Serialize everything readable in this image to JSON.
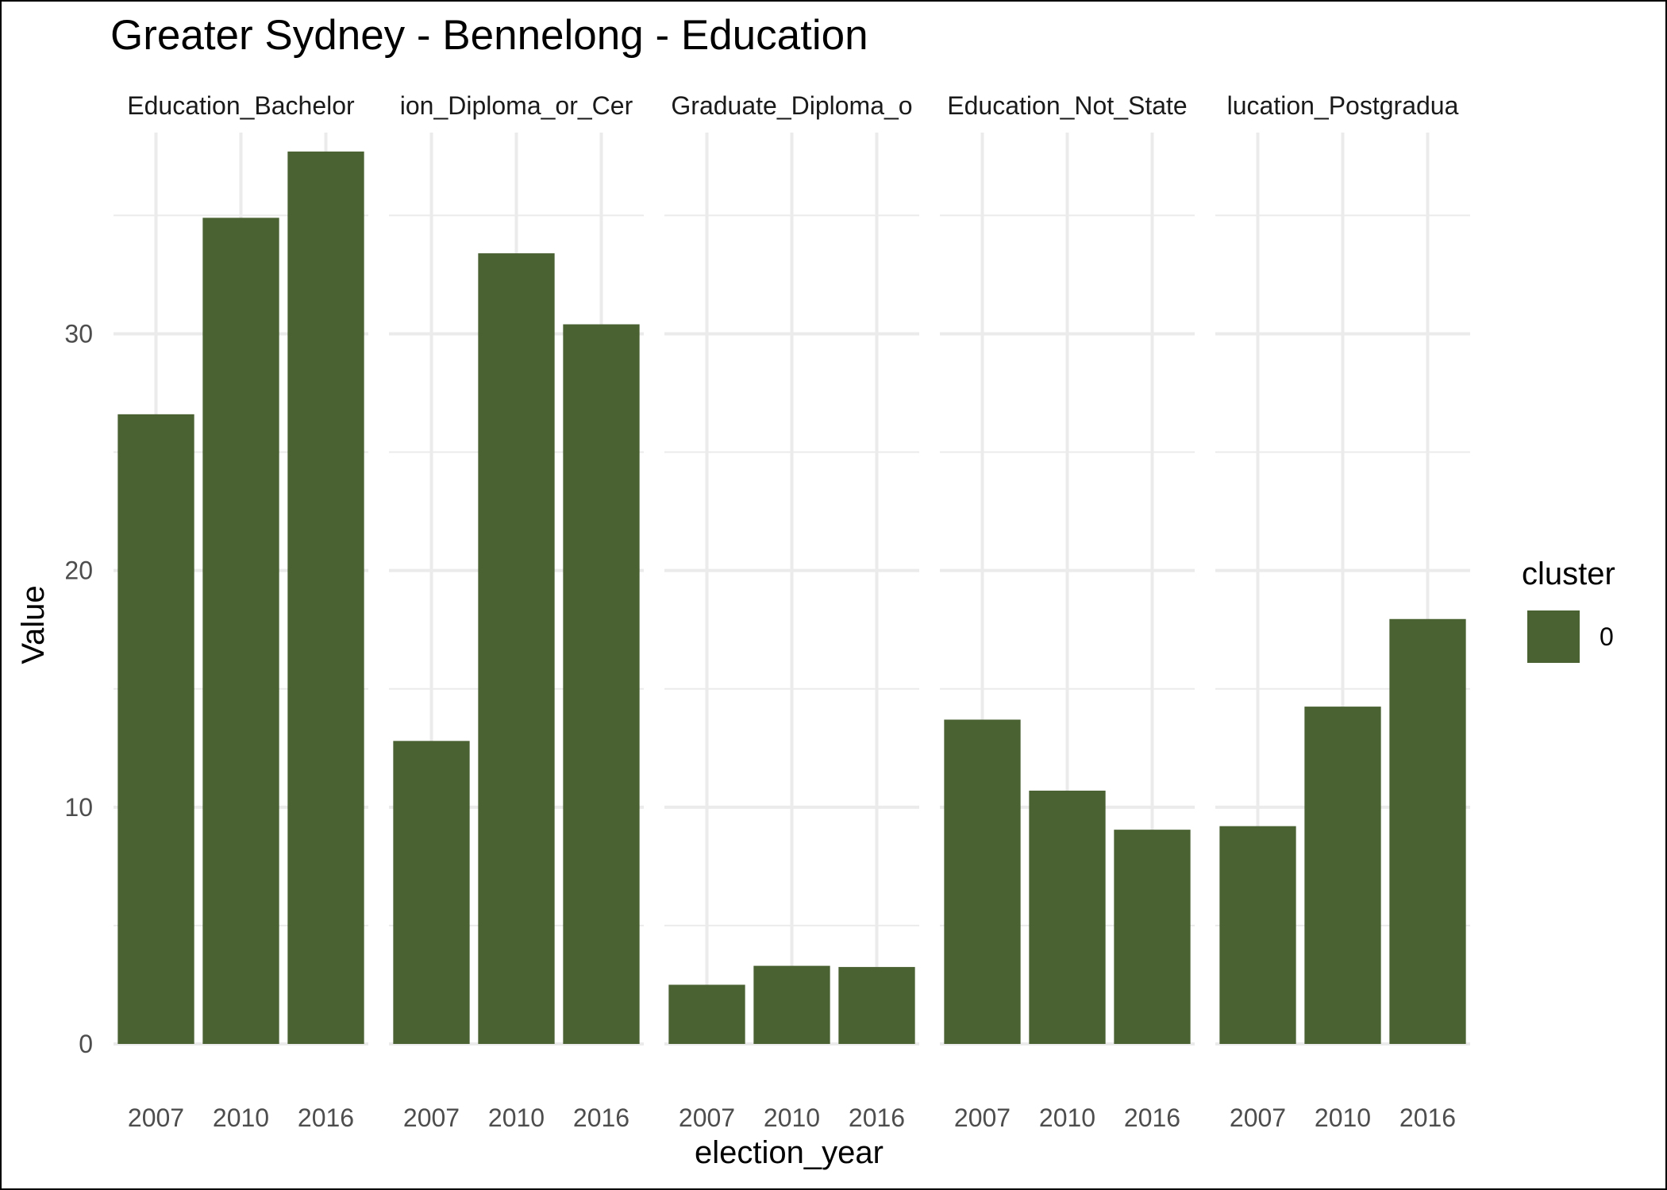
{
  "chart_data": {
    "type": "bar",
    "title": "Greater Sydney - Bennelong - Education",
    "xlabel": "election_year",
    "ylabel": "Value",
    "ylim": [
      0,
      38.5
    ],
    "y_ticks": [
      "0",
      "10",
      "20",
      "30"
    ],
    "grid": true,
    "categories": [
      "2007",
      "2010",
      "2016"
    ],
    "facets": [
      {
        "strip": "Education_Bachelor",
        "values": [
          26.6,
          34.9,
          37.7
        ]
      },
      {
        "strip": "ion_Diploma_or_Cer",
        "values": [
          12.8,
          33.4,
          30.4
        ]
      },
      {
        "strip": "Graduate_Diploma_o",
        "values": [
          2.5,
          3.3,
          3.25
        ]
      },
      {
        "strip": "Education_Not_State",
        "values": [
          13.7,
          10.7,
          9.05
        ]
      },
      {
        "strip": "lucation_Postgradua",
        "values": [
          9.2,
          14.25,
          17.95
        ]
      }
    ],
    "legend": {
      "title": "cluster",
      "items": [
        {
          "label": "0",
          "color": "#4a6132"
        }
      ],
      "position": "right"
    },
    "bar_color": "#4a6132",
    "grid_color": "#ebebeb"
  }
}
